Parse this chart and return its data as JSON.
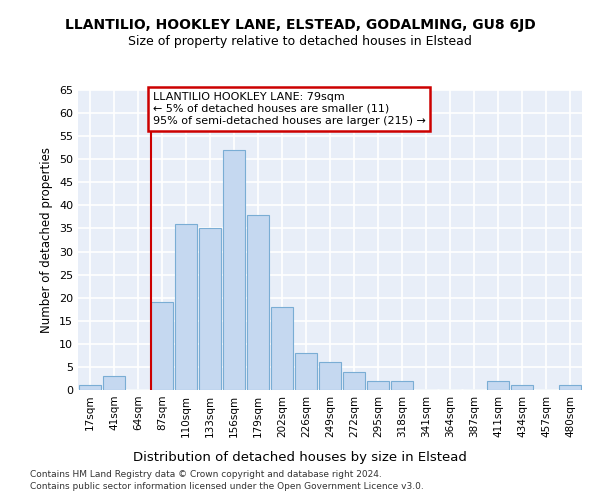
{
  "title": "LLANTILIO, HOOKLEY LANE, ELSTEAD, GODALMING, GU8 6JD",
  "subtitle": "Size of property relative to detached houses in Elstead",
  "xlabel": "Distribution of detached houses by size in Elstead",
  "ylabel": "Number of detached properties",
  "bar_color": "#c5d8f0",
  "bar_edge_color": "#7aadd4",
  "plot_bg_color": "#e8eef8",
  "fig_bg_color": "#ffffff",
  "grid_color": "#ffffff",
  "categories": [
    "17sqm",
    "41sqm",
    "64sqm",
    "87sqm",
    "110sqm",
    "133sqm",
    "156sqm",
    "179sqm",
    "202sqm",
    "226sqm",
    "249sqm",
    "272sqm",
    "295sqm",
    "318sqm",
    "341sqm",
    "364sqm",
    "387sqm",
    "411sqm",
    "434sqm",
    "457sqm",
    "480sqm"
  ],
  "values": [
    1,
    3,
    0,
    19,
    36,
    35,
    52,
    38,
    18,
    8,
    6,
    4,
    2,
    2,
    0,
    0,
    0,
    2,
    1,
    0,
    1
  ],
  "annotation_line1": "LLANTILIO HOOKLEY LANE: 79sqm",
  "annotation_line2": "← 5% of detached houses are smaller (11)",
  "annotation_line3": "95% of semi-detached houses are larger (215) →",
  "annotation_box_facecolor": "#ffffff",
  "annotation_border_color": "#cc0000",
  "vline_color": "#cc0000",
  "vline_bar_index": 3,
  "ylim": [
    0,
    65
  ],
  "yticks": [
    0,
    5,
    10,
    15,
    20,
    25,
    30,
    35,
    40,
    45,
    50,
    55,
    60,
    65
  ],
  "footnote1": "Contains HM Land Registry data © Crown copyright and database right 2024.",
  "footnote2": "Contains public sector information licensed under the Open Government Licence v3.0."
}
